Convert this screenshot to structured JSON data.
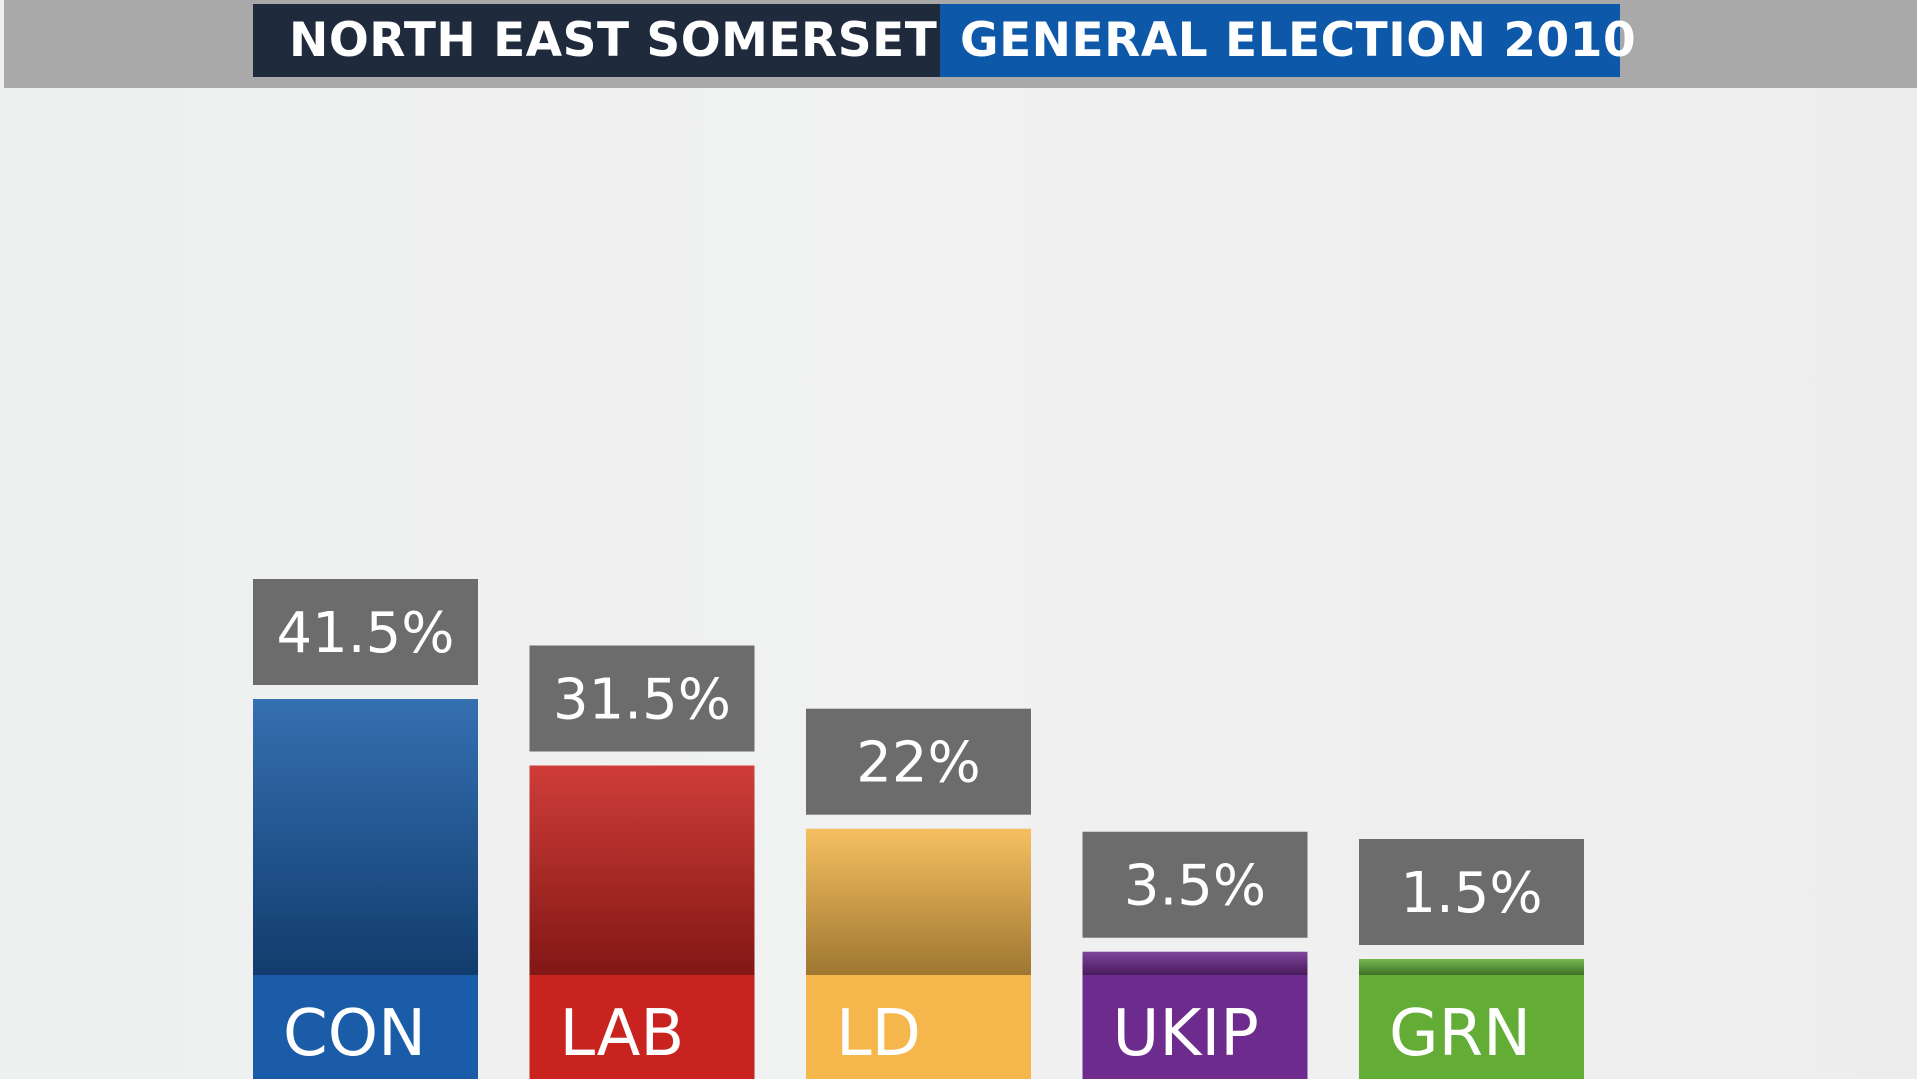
{
  "header": {
    "region": "NORTH EAST SOMERSET",
    "election": "GENERAL ELECTION 2010"
  },
  "colors": {
    "label_box": "#6c6c6c",
    "background": "#f0f0f0"
  },
  "chart_data": {
    "type": "bar",
    "title": "NORTH EAST SOMERSET GENERAL ELECTION 2010",
    "categories": [
      "CON",
      "LAB",
      "LD",
      "UKIP",
      "GRN"
    ],
    "values": [
      41.5,
      31.5,
      22,
      3.5,
      1.5
    ],
    "value_labels": [
      "41.5%",
      "31.5%",
      "22%",
      "3.5%",
      "1.5%"
    ],
    "colors": [
      "#1a5ca8",
      "#c8231e",
      "#f5b74c",
      "#6e2b8e",
      "#63ad37"
    ],
    "grid": false,
    "legend": "none"
  }
}
